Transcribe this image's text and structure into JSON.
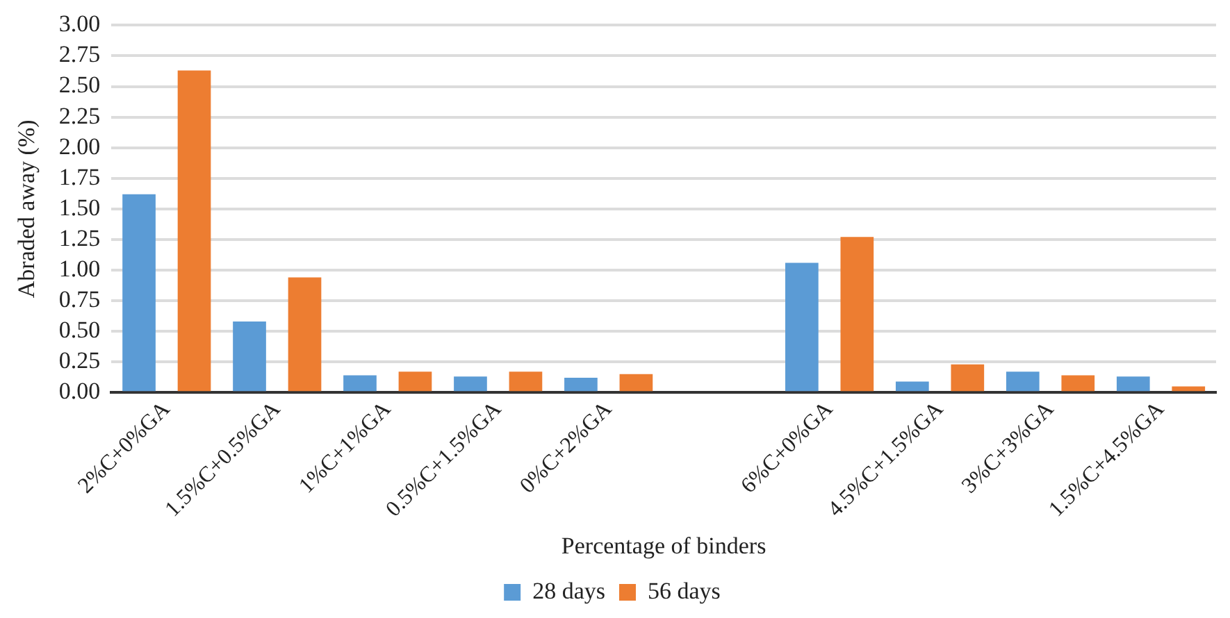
{
  "chart_data": {
    "type": "bar",
    "xlabel": "Percentage of binders",
    "ylabel": "Abraded away (%)",
    "categories": [
      "2%C+0%GA",
      "1.5%C+0.5%GA",
      "1%C+1%GA",
      "0.5%C+1.5%GA",
      "0%C+2%GA",
      null,
      "6%C+0%GA",
      "4.5%C+1.5%GA",
      "3%C+3%GA",
      "1.5%C+4.5%GA"
    ],
    "series": [
      {
        "name": "28 days",
        "color": "#5b9bd5",
        "values": [
          1.62,
          0.58,
          0.14,
          0.13,
          0.12,
          null,
          1.06,
          0.09,
          0.17,
          0.13
        ]
      },
      {
        "name": "56 days",
        "color": "#ed7d31",
        "values": [
          2.63,
          0.94,
          0.17,
          0.17,
          0.15,
          null,
          1.27,
          0.23,
          0.14,
          0.05
        ]
      }
    ],
    "ylim": [
      0,
      3
    ],
    "yticks": [
      {
        "value": 0,
        "label": "0.00"
      },
      {
        "value": 0.25,
        "label": "0.25"
      },
      {
        "value": 0.5,
        "label": "0.50"
      },
      {
        "value": 0.75,
        "label": "0.75"
      },
      {
        "value": 1,
        "label": "1.00"
      },
      {
        "value": 1.25,
        "label": "1.25"
      },
      {
        "value": 1.5,
        "label": "1.50"
      },
      {
        "value": 1.75,
        "label": "1.75"
      },
      {
        "value": 2,
        "label": "2.00"
      },
      {
        "value": 2.25,
        "label": "2.25"
      },
      {
        "value": 2.5,
        "label": "2.50"
      },
      {
        "value": 2.75,
        "label": "2.75"
      },
      {
        "value": 3,
        "label": "3.00"
      }
    ],
    "grid": "y",
    "legend": "bottom"
  }
}
